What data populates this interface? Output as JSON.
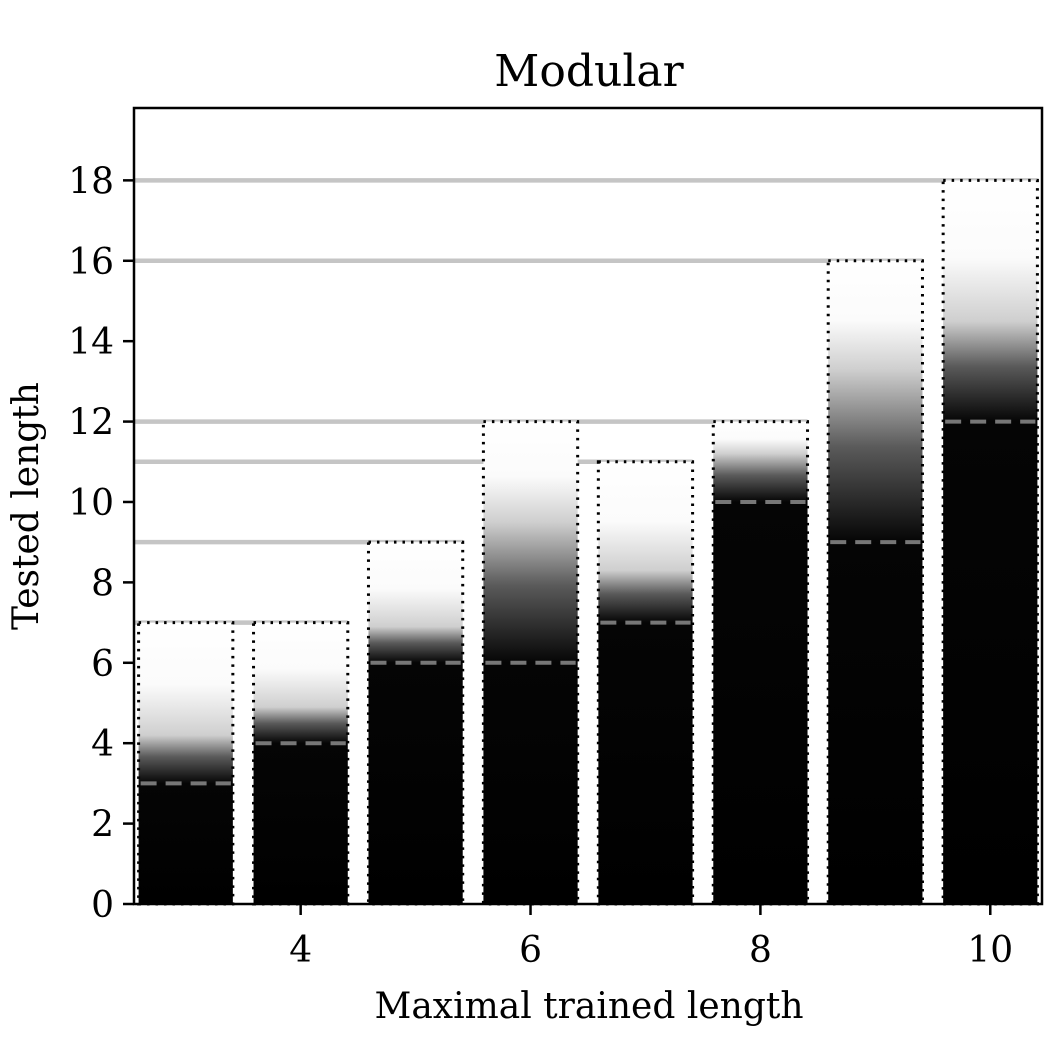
{
  "chart_data": {
    "type": "bar",
    "title": "Modular",
    "xlabel": "Maximal trained length",
    "ylabel": "Tested length",
    "xlim": [
      2.55,
      10.45
    ],
    "ylim": [
      0,
      19.8
    ],
    "x_ticks": [
      4,
      6,
      8,
      10
    ],
    "y_ticks": [
      0,
      2,
      4,
      6,
      8,
      10,
      12,
      14,
      16,
      18
    ],
    "categories": [
      3,
      4,
      5,
      6,
      7,
      8,
      9,
      10
    ],
    "series": [
      {
        "name": "tested max length (dotted outline)",
        "values": [
          7,
          7,
          9,
          12,
          11,
          12,
          16,
          18
        ]
      },
      {
        "name": "gradient start (dashed line)",
        "values": [
          3,
          4,
          6,
          6,
          7,
          10,
          9,
          12
        ]
      },
      {
        "name": "gradient fade end",
        "values": [
          4.2,
          4.9,
          6.9,
          9.5,
          8.3,
          11.2,
          13.3,
          14.5
        ]
      }
    ],
    "reference_lines": [
      7,
      9,
      11,
      12,
      16,
      18
    ],
    "grid": false,
    "colors": {
      "fill": "#000000",
      "dashed": "#777777",
      "reference": "#bbbbbb"
    }
  }
}
